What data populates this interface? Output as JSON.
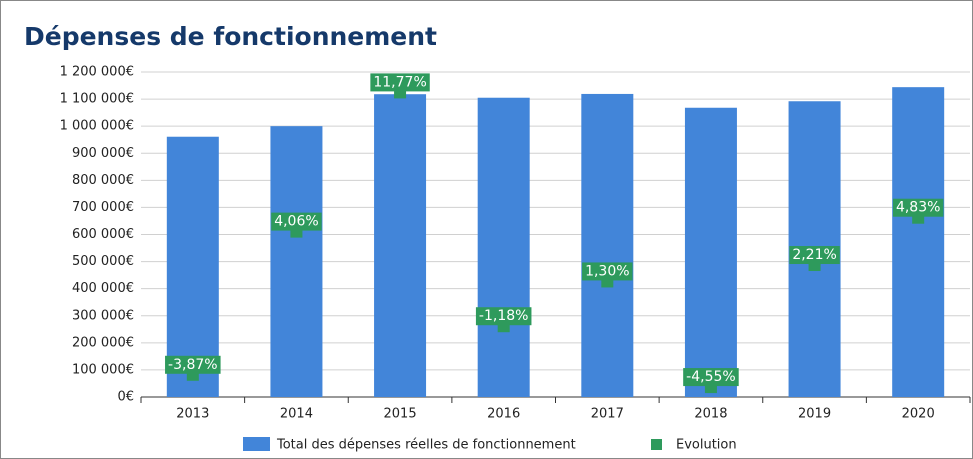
{
  "chart_data": {
    "type": "bar_markers",
    "title": "Dépenses de fonctionnement",
    "categories": [
      "2013",
      "2014",
      "2015",
      "2016",
      "2017",
      "2018",
      "2019",
      "2020"
    ],
    "series": [
      {
        "name": "Total des dépenses réelles de fonctionnement",
        "color": "#4285d9",
        "values": [
          961000,
          1000000,
          1118000,
          1105000,
          1119000,
          1068000,
          1092000,
          1144000
        ]
      },
      {
        "name": "Evolution",
        "color": "#2e9a5c",
        "axis": "y2",
        "values": [
          -3.87,
          4.06,
          11.77,
          -1.18,
          1.3,
          -4.55,
          2.21,
          4.83
        ],
        "value_labels": [
          "-3,87%",
          "4,06%",
          "11,77%",
          "-1,18%",
          "1,30%",
          "-4,55%",
          "2,21%",
          "4,83%"
        ]
      }
    ],
    "ylim": [
      0,
      1200000
    ],
    "yticks": [
      {
        "value": 0,
        "label": "0€"
      },
      {
        "value": 100000,
        "label": "100 000€"
      },
      {
        "value": 200000,
        "label": "200 000€"
      },
      {
        "value": 300000,
        "label": "300 000€"
      },
      {
        "value": 400000,
        "label": "400 000€"
      },
      {
        "value": 500000,
        "label": "500 000€"
      },
      {
        "value": 600000,
        "label": "600 000€"
      },
      {
        "value": 700000,
        "label": "700 000€"
      },
      {
        "value": 800000,
        "label": "800 000€"
      },
      {
        "value": 900000,
        "label": "900 000€"
      },
      {
        "value": 1000000,
        "label": "1 000 000€"
      },
      {
        "value": 1100000,
        "label": "1 100 000€"
      },
      {
        "value": 1200000,
        "label": "1 200 000€"
      }
    ],
    "y2lim": [
      -5.1,
      12.9
    ],
    "grid": true,
    "legend": "bottom"
  }
}
